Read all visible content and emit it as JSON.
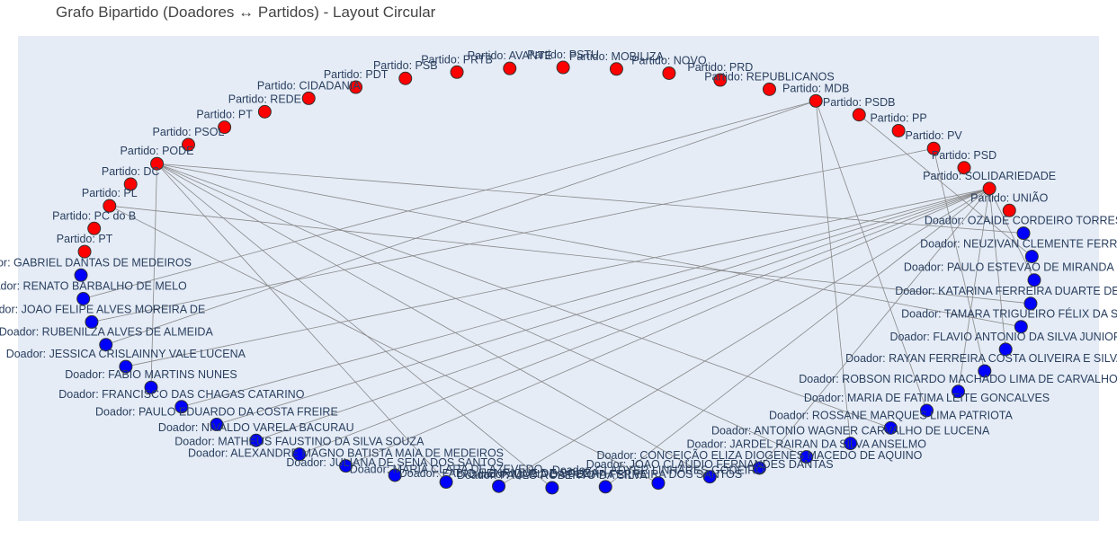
{
  "title": "Grafo Bipartido (Doadores ↔ Partidos) - Layout Circular",
  "colors": {
    "plot_background": "#e5ecf6",
    "edge": "#888888",
    "partido_node": "#ff0000",
    "doador_node": "#0000ff",
    "node_border": "#333333",
    "label": "#2a3f5f"
  },
  "chart_data": {
    "type": "scatter",
    "layout": "circular",
    "grid": false,
    "legend": "none",
    "partidos": [
      "Partido: UNIÃO",
      "Partido: SOLIDARIEDADE",
      "Partido: PSD",
      "Partido: PV",
      "Partido: PP",
      "Partido: PSDB",
      "Partido: MDB",
      "Partido: REPUBLICANOS",
      "Partido: PRD",
      "Partido: NOVO",
      "Partido: MOBILIZA",
      "Partido: PSTU",
      "Partido: AVANTE",
      "Partido: PRTB",
      "Partido: PSB",
      "Partido: PDT",
      "Partido: CIDADANIA",
      "Partido: REDE",
      "Partido: PT",
      "Partido: PSOL",
      "Partido: PODE",
      "Partido: DC",
      "Partido: PL",
      "Partido: PC do B",
      "Partido: PT"
    ],
    "doadores": [
      "Doador: GABRIEL DANTAS DE MEDEIROS",
      "Doador: RENATO BARBALHO DE MELO",
      "Doador: JOAO FELIPE ALVES MOREIRA DE",
      "Doador: RUBENILZA ALVES DE ALMEIDA",
      "Doador: JESSICA CRISLAINNY VALE LUCENA",
      "Doador: FABIO MARTINS NUNES",
      "Doador: FRANCISCO DAS CHAGAS CATARINO",
      "Doador: PAULO EDUARDO DA COSTA FREIRE",
      "Doador: NIVALDO VARELA BACURAU",
      "Doador: MATHEUS FAUSTINO DA SILVA SOUZA",
      "Doador: ALEXANDRE MAGNO BATISTA MAIA DE MEDEIROS",
      "Doador: JULIANA DE SENA DOS SANTOS",
      "Doador: MARIA CLARA DE AZEVEDO",
      "Doador: FABIO HENRIQUE DE SOUZA",
      "Doador: PAULO ROBERTO DA SILVA",
      "Doador: MARIA DA PENHA FERREIRA DOS SANTOS",
      "Doador: GLADYER LINHARES GODEIRO",
      "Doador: JOAO CLAUDIO FERNANDES DANTAS",
      "Doador: CONCEIÇÃO ELIZA DIOGENES MACEDO DE AQUINO",
      "Doador: JARDEL RAIRAN DA SILVA ANSELMO",
      "Doador: ANTONIO WAGNER CARVALHO DE LUCENA",
      "Doador: ROSSANE MARQUES LIMA PATRIOTA",
      "Doador: MARIA DE FATIMA LEITE GONCALVES",
      "Doador: ROBSON RICARDO MACHADO LIMA DE CARVALHO",
      "Doador: RAYAN FERREIRA COSTA OLIVEIRA E SILVA",
      "Doador: FLAVIO ANTONIO DA SILVA JUNIOR",
      "Doador: TAMARA TRIGUEIRO FÉLIX DA SILVA",
      "Doador: KATARINA FERREIRA DUARTE DE AQUINO",
      "Doador: PAULO ESTEVÃO DE MIRANDA BORGES",
      "Doador: NEUZIVAN CLEMENTE FERREIRA",
      "Doador: OZAIDE CORDEIRO TORRES"
    ],
    "edges": [
      [
        "Doador: OZAIDE CORDEIRO TORRES",
        "Partido: PODE"
      ],
      [
        "Doador: NEUZIVAN CLEMENTE FERREIRA",
        "Partido: PSDB"
      ],
      [
        "Doador: PAULO ESTEVÃO DE MIRANDA BORGES",
        "Partido: SOLIDARIEDADE"
      ],
      [
        "Doador: KATARINA FERREIRA DUARTE DE AQUINO",
        "Partido: PL"
      ],
      [
        "Doador: TAMARA TRIGUEIRO FÉLIX DA SILVA",
        "Partido: PODE"
      ],
      [
        "Doador: FLAVIO ANTONIO DA SILVA JUNIOR",
        "Partido: SOLIDARIEDADE"
      ],
      [
        "Doador: RAYAN FERREIRA COSTA OLIVEIRA E SILVA",
        "Partido: PV"
      ],
      [
        "Doador: ROBSON RICARDO MACHADO LIMA DE CARVALHO",
        "Partido: SOLIDARIEDADE"
      ],
      [
        "Doador: MARIA DE FATIMA LEITE GONCALVES",
        "Partido: MDB"
      ],
      [
        "Doador: ROSSANE MARQUES LIMA PATRIOTA",
        "Partido: PODE"
      ],
      [
        "Doador: ANTONIO WAGNER CARVALHO DE LUCENA",
        "Partido: MDB"
      ],
      [
        "Doador: JARDEL RAIRAN DA SILVA ANSELMO",
        "Partido: PODE"
      ],
      [
        "Doador: CONCEIÇÃO ELIZA DIOGENES MACEDO DE AQUINO",
        "Partido: SOLIDARIEDADE"
      ],
      [
        "Doador: JOAO CLAUDIO FERNANDES DANTAS",
        "Partido: PODE"
      ],
      [
        "Doador: GLADYER LINHARES GODEIRO",
        "Partido: PL"
      ],
      [
        "Doador: MARIA DA PENHA FERREIRA DOS SANTOS",
        "Partido: SOLIDARIEDADE"
      ],
      [
        "Doador: PAULO ROBERTO DA SILVA",
        "Partido: PODE"
      ],
      [
        "Doador: FABIO HENRIQUE DE SOUZA",
        "Partido: SOLIDARIEDADE"
      ],
      [
        "Doador: MARIA CLARA DE AZEVEDO",
        "Partido: PODE"
      ],
      [
        "Doador: ALEXANDRE MAGNO BATISTA MAIA DE MEDEIROS",
        "Partido: SOLIDARIEDADE"
      ],
      [
        "Doador: MATHEUS FAUSTINO DA SILVA SOUZA",
        "Partido: SOLIDARIEDADE"
      ],
      [
        "Doador: NIVALDO VARELA BACURAU",
        "Partido: SOLIDARIEDADE"
      ],
      [
        "Doador: PAULO EDUARDO DA COSTA FREIRE",
        "Partido: SOLIDARIEDADE"
      ],
      [
        "Doador: FRANCISCO DAS CHAGAS CATARINO",
        "Partido: SOLIDARIEDADE"
      ],
      [
        "Doador: FABIO MARTINS NUNES",
        "Partido: PODE"
      ],
      [
        "Doador: JESSICA CRISLAINNY VALE LUCENA",
        "Partido: SOLIDARIEDADE"
      ],
      [
        "Doador: RUBENILZA ALVES DE ALMEIDA",
        "Partido: MDB"
      ],
      [
        "Doador: JOAO FELIPE ALVES MOREIRA DE",
        "Partido: PV"
      ],
      [
        "Doador: RENATO BARBALHO DE MELO",
        "Partido: MDB"
      ]
    ]
  }
}
